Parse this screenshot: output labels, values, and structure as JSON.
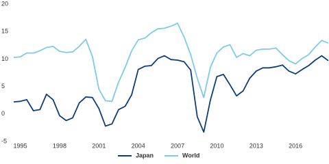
{
  "chart_data": {
    "type": "line",
    "x": [
      1994.5,
      1995,
      1995.5,
      1996,
      1996.5,
      1997,
      1997.5,
      1998,
      1998.5,
      1999,
      1999.5,
      2000,
      2000.5,
      2001,
      2001.5,
      2002,
      2002.5,
      2003,
      2003.5,
      2004,
      2004.5,
      2005,
      2005.5,
      2006,
      2006.5,
      2007,
      2007.5,
      2008,
      2008.5,
      2009,
      2009.5,
      2010,
      2010.5,
      2011,
      2011.5,
      2012,
      2012.5,
      2013,
      2013.5,
      2014,
      2014.5,
      2015,
      2015.5,
      2016,
      2016.5,
      2017,
      2017.5,
      2018,
      2018.5
    ],
    "series": [
      {
        "name": "Japan",
        "color": "#0b3d7a",
        "values": [
          2.2,
          2.3,
          2.6,
          0.6,
          0.8,
          3.6,
          2.6,
          -0.3,
          -1.2,
          -0.7,
          2,
          3.1,
          3,
          1,
          -2.2,
          -1.8,
          0.8,
          1.4,
          3.5,
          8.1,
          8.7,
          8.8,
          10.1,
          10.6,
          9.9,
          9.8,
          9.5,
          8,
          -0.5,
          -3.3,
          2.5,
          6.8,
          7.2,
          5.3,
          3.3,
          4.2,
          6.5,
          7.8,
          8.4,
          8.4,
          8.6,
          8.9,
          7.8,
          7.3,
          8.1,
          8.8,
          9.8,
          10.6,
          9.7
        ]
      },
      {
        "name": "World",
        "color": "#7ccbeb",
        "values": [
          10.3,
          10.4,
          11.1,
          11.1,
          11.5,
          12.1,
          12.3,
          11.4,
          11.2,
          11.3,
          12.3,
          13.6,
          10.5,
          4.5,
          2.4,
          2.3,
          5.8,
          8.5,
          11.5,
          13.5,
          13.8,
          14.8,
          15.5,
          15.6,
          16,
          16.5,
          14,
          10.8,
          6.5,
          3,
          8.5,
          11.1,
          12.2,
          12.6,
          10.3,
          11,
          10.6,
          11.6,
          11.8,
          11.8,
          12,
          10.8,
          9.7,
          9.1,
          10.1,
          10.8,
          12.2,
          13.4,
          12.9
        ]
      }
    ],
    "xlim": [
      1994.5,
      2018.5
    ],
    "xticks": [
      1995,
      1998,
      2001,
      2004,
      2007,
      2010,
      2013,
      2016
    ],
    "ylim": [
      -5,
      20
    ],
    "yticks": [
      -5,
      0,
      5,
      10,
      15,
      20
    ],
    "grid": false,
    "legend": "bottom"
  }
}
